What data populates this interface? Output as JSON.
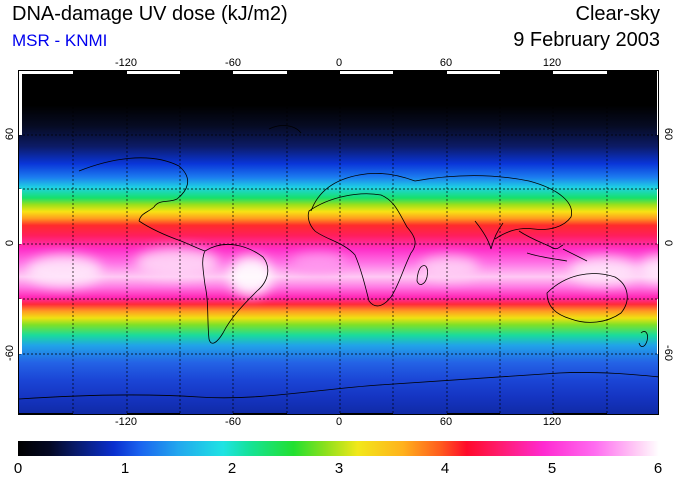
{
  "header": {
    "title": "DNA-damage UV dose (kJ/m2)",
    "source": "MSR - KNMI",
    "condition": "Clear-sky",
    "date": "9 February 2003"
  },
  "map": {
    "lon_ticks": [
      "-120",
      "-60",
      "0",
      "60",
      "120"
    ],
    "lat_ticks": [
      "60",
      "0",
      "-60"
    ]
  },
  "colorbar": {
    "ticks": [
      "0",
      "1",
      "2",
      "3",
      "4",
      "5",
      "6"
    ],
    "range": [
      0,
      6
    ],
    "colors": [
      "#000000",
      "#0a2fcf",
      "#1fe3e3",
      "#22e030",
      "#ff0a2a",
      "#ff2ad1",
      "#ffffff"
    ]
  }
}
